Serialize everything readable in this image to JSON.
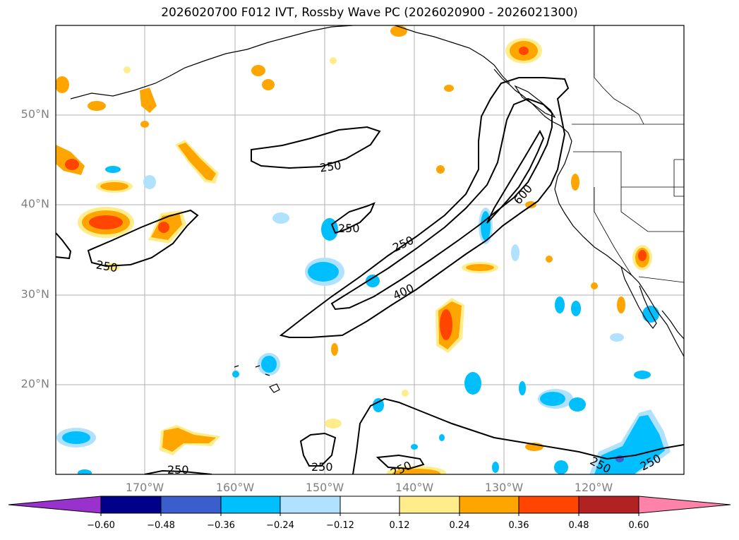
{
  "title": "2026020700 F012 IVT, Rossby Wave PC (2026020900 - 2026021300)",
  "lat_labels": [
    "50°N",
    "40°N",
    "30°N",
    "20°N"
  ],
  "lon_labels": [
    "170°W",
    "160°W",
    "150°W",
    "140°W",
    "130°W",
    "120°W"
  ],
  "contour_labels": [
    "250",
    "250",
    "250",
    "250",
    "400",
    "600",
    "250",
    "250",
    "250",
    "250",
    "250"
  ],
  "colorbar": {
    "ticks": [
      "−0.60",
      "−0.48",
      "−0.36",
      "−0.24",
      "−0.12",
      "0.12",
      "0.24",
      "0.36",
      "0.48",
      "0.60"
    ],
    "colors": [
      "#9932cc",
      "#00008b",
      "#3a5fcd",
      "#00bfff",
      "#b0e2ff",
      "#ffffff",
      "#ffec8b",
      "#ffa500",
      "#ff4500",
      "#b22222",
      "#ff82ab"
    ]
  },
  "colors": {
    "pos_light": "#ffec8b",
    "pos_mid": "#ffa500",
    "pos_strong": "#ff4500",
    "neg_light": "#b0e2ff",
    "neg_mid": "#00bfff",
    "neg_strong": "#3a5fcd",
    "contour": "#000000",
    "grid": "#b0b0b0"
  }
}
